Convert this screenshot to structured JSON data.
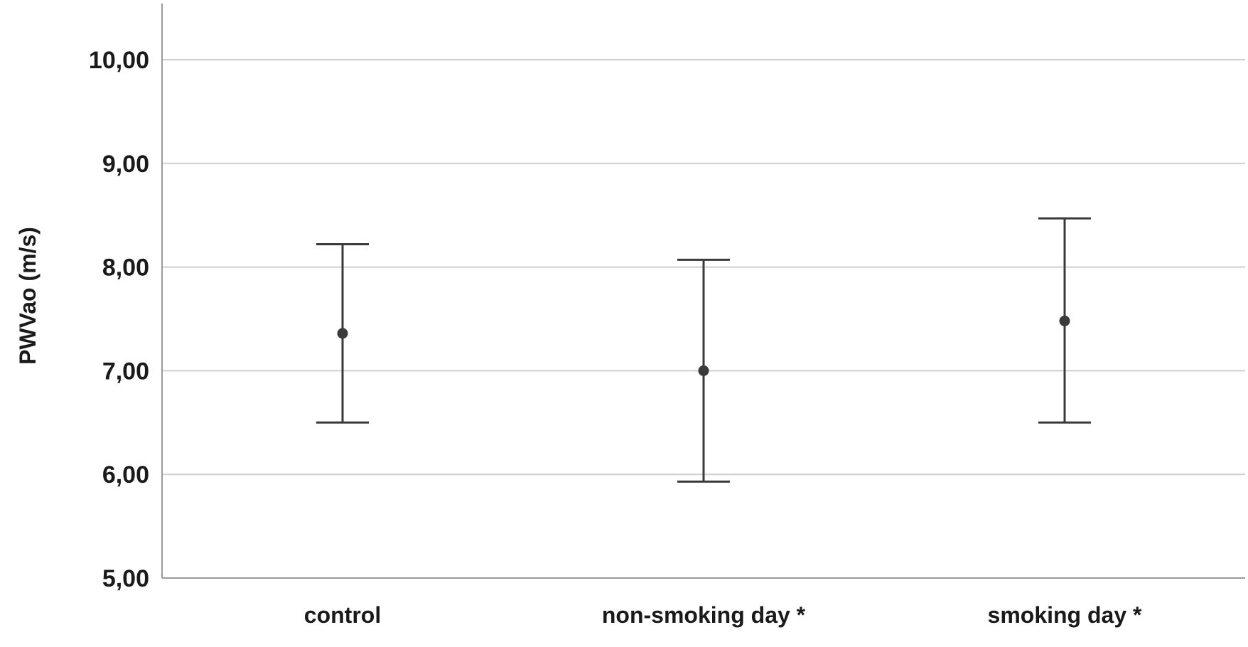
{
  "chart_data": {
    "type": "errorbar",
    "title": "",
    "xlabel": "",
    "ylabel": "PWVao (m/s)",
    "ylim": [
      5,
      10.5
    ],
    "y_ticks": [
      5,
      6,
      7,
      8,
      9,
      10
    ],
    "y_tick_labels": [
      "5,00",
      "6,00",
      "7,00",
      "8,00",
      "9,00",
      "10,00"
    ],
    "grid": "horizontal",
    "categories": [
      "control",
      "non-smoking day *",
      "smoking day *"
    ],
    "series": [
      {
        "mean": [
          7.36,
          7.0,
          7.48
        ],
        "lower": [
          6.5,
          5.93,
          6.5
        ],
        "upper": [
          8.22,
          8.07,
          8.47
        ]
      }
    ],
    "colors": {
      "marker": "#3a3a3a",
      "errorbar": "#3a3a3a",
      "grid": "#cfcfcf",
      "axis": "#9a9a9a"
    }
  }
}
